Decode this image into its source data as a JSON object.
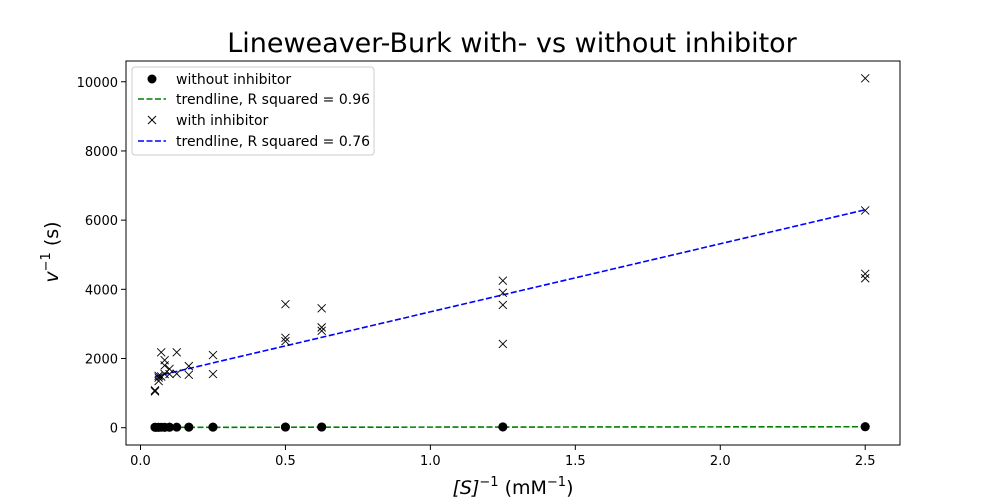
{
  "chart_data": {
    "type": "scatter",
    "title": "Lineweaver-Burk with- vs without inhibitor",
    "xlabel": {
      "base": "[S]",
      "base_exp": "−1",
      "unit_open": " (mM",
      "unit_exp": "−1",
      "unit_close": ")"
    },
    "ylabel": {
      "base": "v",
      "base_exp": "−1",
      "unit": " (s)"
    },
    "xlim": [
      -0.05,
      2.62
    ],
    "ylim": [
      -500,
      10600
    ],
    "xticks": [
      0.0,
      0.5,
      1.0,
      1.5,
      2.0,
      2.5
    ],
    "xtick_labels": [
      "0.0",
      "0.5",
      "1.0",
      "1.5",
      "2.0",
      "2.5"
    ],
    "yticks": [
      0,
      2000,
      4000,
      6000,
      8000,
      10000
    ],
    "ytick_labels": [
      "0",
      "2000",
      "4000",
      "6000",
      "8000",
      "10000"
    ],
    "legend_position": "top-left",
    "series": [
      {
        "name": "without inhibitor",
        "kind": "points",
        "marker": "circle",
        "color": "#000000",
        "points": [
          [
            0.05,
            12
          ],
          [
            0.05,
            14
          ],
          [
            0.055,
            11
          ],
          [
            0.0625,
            13
          ],
          [
            0.0625,
            10
          ],
          [
            0.0714,
            12
          ],
          [
            0.0833,
            14
          ],
          [
            0.0833,
            11
          ],
          [
            0.1,
            15
          ],
          [
            0.1,
            12
          ],
          [
            0.125,
            16
          ],
          [
            0.1667,
            17
          ],
          [
            0.1667,
            14
          ],
          [
            0.25,
            18
          ],
          [
            0.25,
            16
          ],
          [
            0.5,
            20
          ],
          [
            0.5,
            17
          ],
          [
            0.625,
            21
          ],
          [
            0.625,
            18
          ],
          [
            1.25,
            24
          ],
          [
            1.25,
            22
          ],
          [
            2.5,
            30
          ],
          [
            2.5,
            27
          ]
        ]
      },
      {
        "name": "trendline, R squared = 0.96",
        "kind": "line",
        "color": "#008000",
        "points": [
          [
            0.05,
            10
          ],
          [
            2.5,
            28
          ]
        ]
      },
      {
        "name": "with inhibitor",
        "kind": "points",
        "marker": "x",
        "color": "#000000",
        "points": [
          [
            0.05,
            1080
          ],
          [
            0.05,
            1050
          ],
          [
            0.0625,
            1350
          ],
          [
            0.0625,
            1500
          ],
          [
            0.0625,
            1450
          ],
          [
            0.0714,
            2180
          ],
          [
            0.0714,
            1480
          ],
          [
            0.0833,
            1950
          ],
          [
            0.0833,
            1800
          ],
          [
            0.0833,
            1550
          ],
          [
            0.1,
            1700
          ],
          [
            0.1,
            1550
          ],
          [
            0.125,
            2180
          ],
          [
            0.125,
            1560
          ],
          [
            0.1667,
            1780
          ],
          [
            0.1667,
            1530
          ],
          [
            0.25,
            2100
          ],
          [
            0.25,
            1550
          ],
          [
            0.5,
            3570
          ],
          [
            0.5,
            2600
          ],
          [
            0.5,
            2500
          ],
          [
            0.625,
            3450
          ],
          [
            0.625,
            2900
          ],
          [
            0.625,
            2800
          ],
          [
            1.25,
            4250
          ],
          [
            1.25,
            3900
          ],
          [
            1.25,
            3550
          ],
          [
            1.25,
            2420
          ],
          [
            2.5,
            10100
          ],
          [
            2.5,
            6280
          ],
          [
            2.5,
            4450
          ],
          [
            2.5,
            4320
          ]
        ]
      },
      {
        "name": "trendline, R squared = 0.76",
        "kind": "line",
        "color": "#0000ff",
        "points": [
          [
            0.05,
            1480
          ],
          [
            2.5,
            6300
          ]
        ]
      }
    ]
  }
}
